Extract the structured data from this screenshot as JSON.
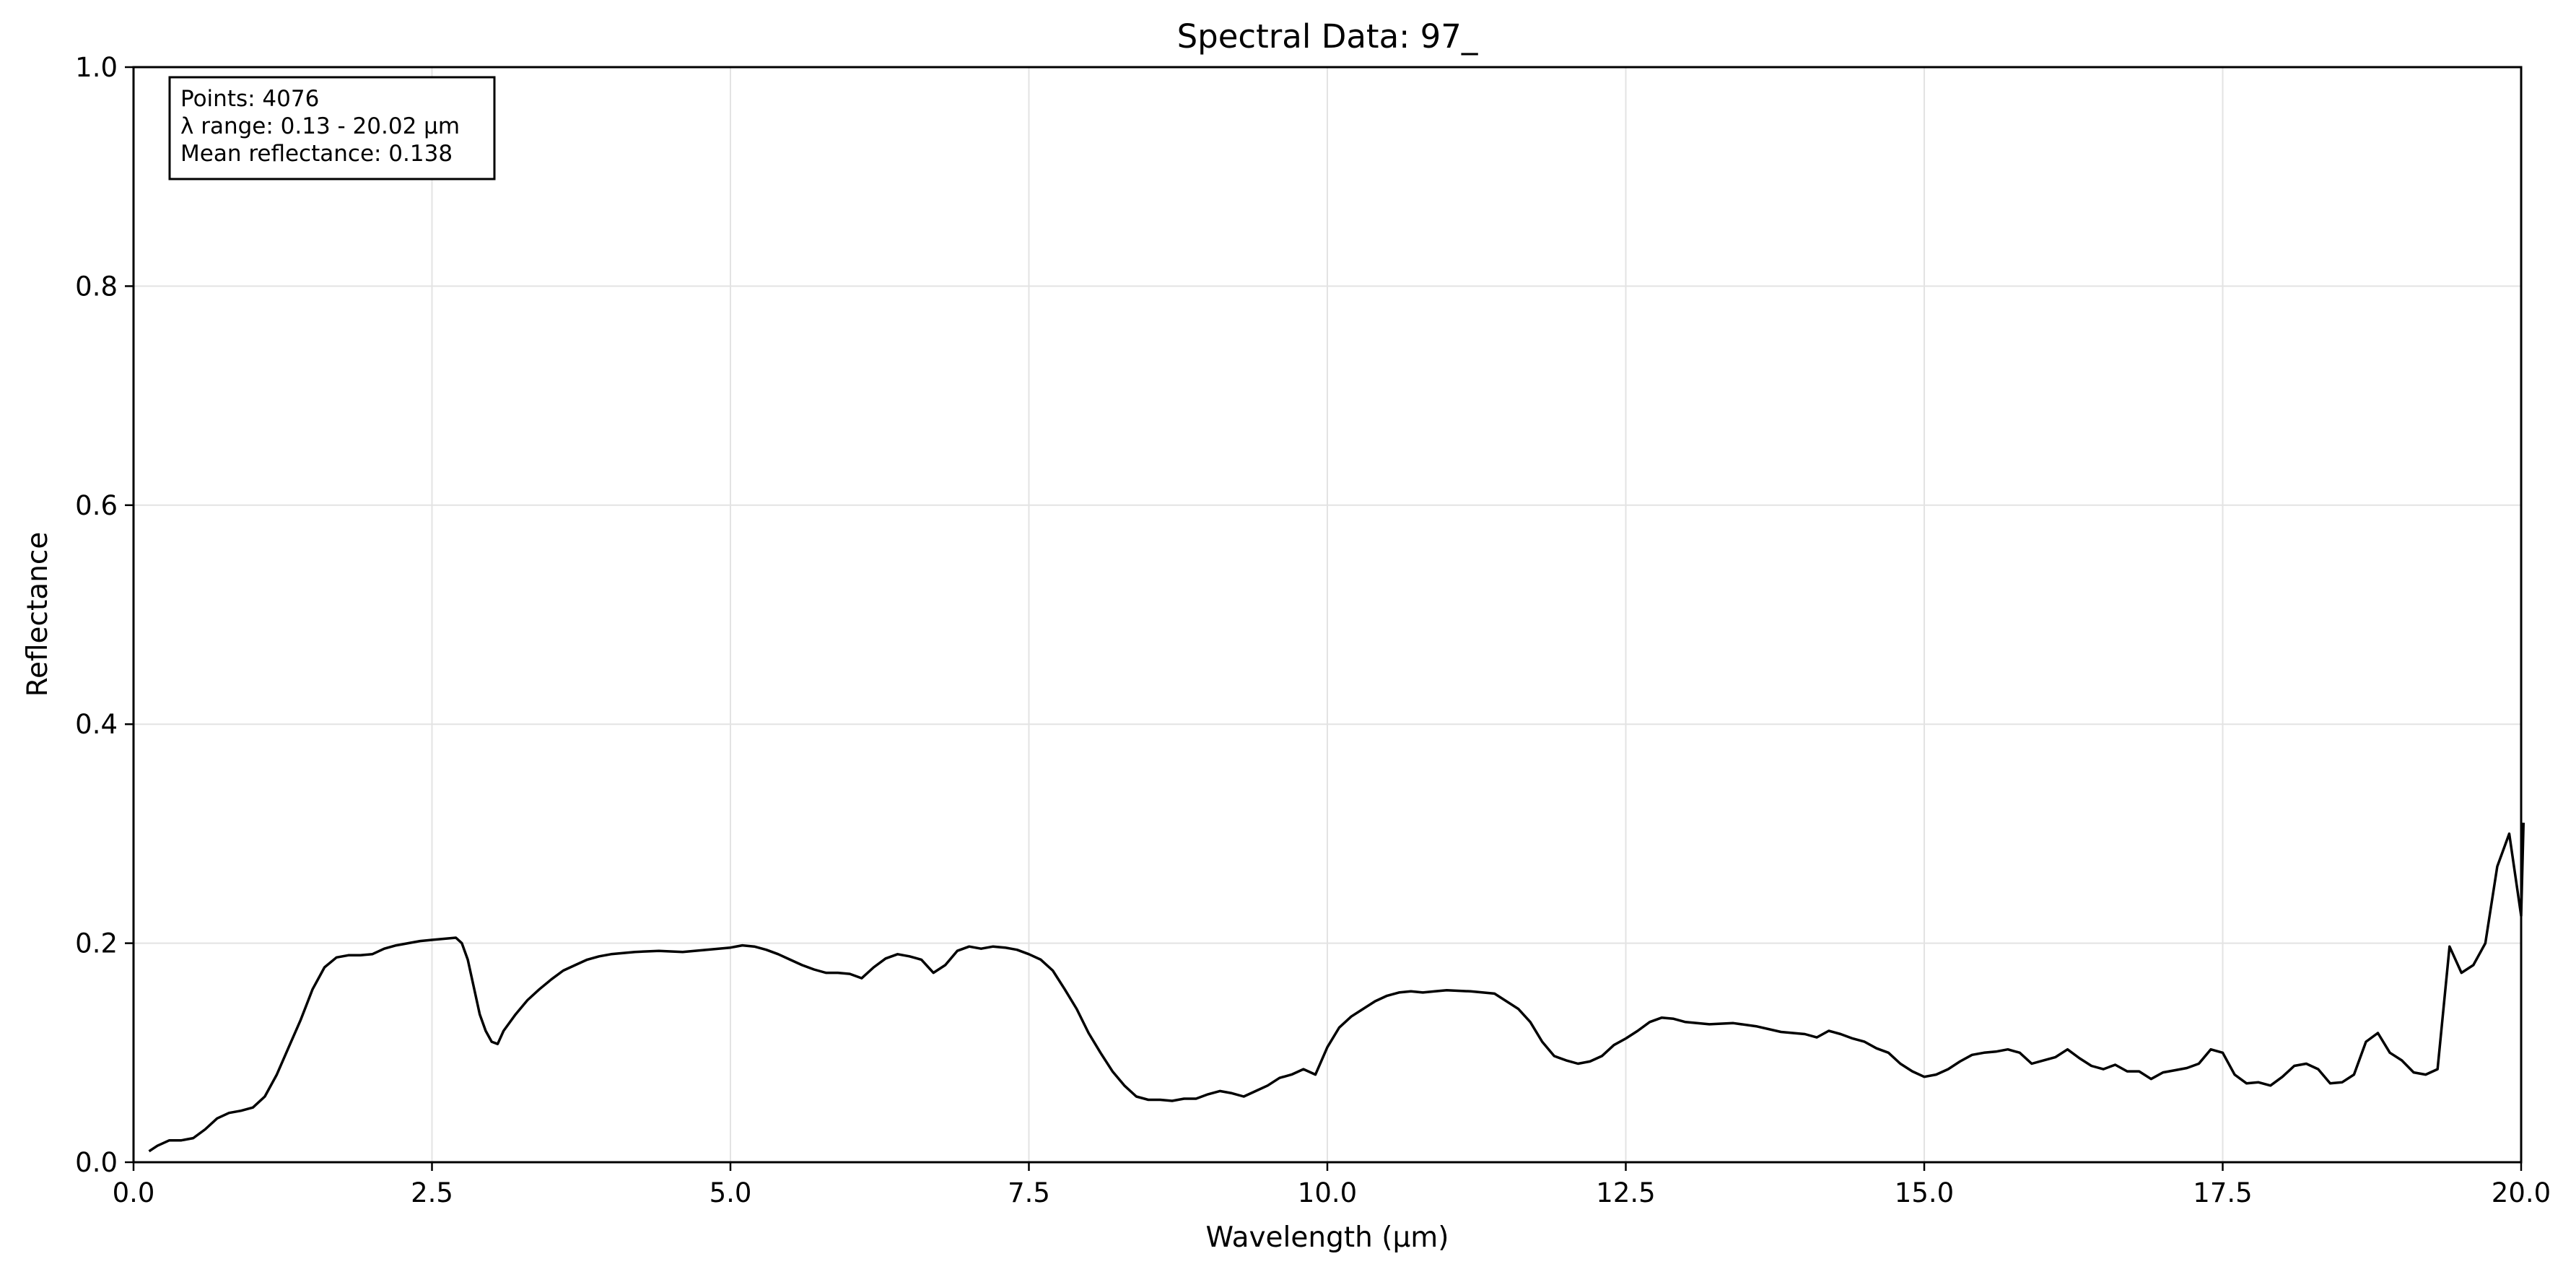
{
  "chart_data": {
    "type": "line",
    "title": "Spectral Data: 97_",
    "xlabel": "Wavelength (µm)",
    "ylabel": "Reflectance",
    "xlim": [
      0.0,
      20.0
    ],
    "ylim": [
      0.0,
      1.0
    ],
    "x_ticks": [
      "0.0",
      "2.5",
      "5.0",
      "7.5",
      "10.0",
      "12.5",
      "15.0",
      "17.5",
      "20.0"
    ],
    "y_ticks": [
      "0.0",
      "0.2",
      "0.4",
      "0.6",
      "0.8",
      "1.0"
    ],
    "grid": true,
    "line_color": "#000000",
    "info_box": {
      "position": "top-left",
      "lines": [
        "Points: 4076",
        "λ range: 0.13 - 20.02 µm",
        "Mean reflectance: 0.138"
      ]
    },
    "series": [
      {
        "x": [
          0.13,
          0.2,
          0.3,
          0.4,
          0.5,
          0.6,
          0.7,
          0.8,
          0.9,
          1.0,
          1.1,
          1.2,
          1.3,
          1.4,
          1.5,
          1.6,
          1.7,
          1.8,
          1.9,
          2.0,
          2.1,
          2.2,
          2.3,
          2.4,
          2.5,
          2.6,
          2.7,
          2.75,
          2.8,
          2.85,
          2.9,
          2.95,
          3.0,
          3.05,
          3.1,
          3.2,
          3.3,
          3.4,
          3.5,
          3.6,
          3.7,
          3.8,
          3.9,
          4.0,
          4.2,
          4.4,
          4.6,
          4.8,
          5.0,
          5.1,
          5.2,
          5.3,
          5.4,
          5.5,
          5.6,
          5.7,
          5.8,
          5.9,
          6.0,
          6.1,
          6.2,
          6.3,
          6.4,
          6.5,
          6.6,
          6.7,
          6.8,
          6.9,
          7.0,
          7.1,
          7.2,
          7.3,
          7.4,
          7.5,
          7.6,
          7.7,
          7.8,
          7.9,
          8.0,
          8.1,
          8.2,
          8.3,
          8.4,
          8.5,
          8.6,
          8.7,
          8.8,
          8.9,
          9.0,
          9.1,
          9.2,
          9.3,
          9.4,
          9.5,
          9.6,
          9.7,
          9.8,
          9.9,
          10.0,
          10.1,
          10.2,
          10.3,
          10.4,
          10.5,
          10.6,
          10.7,
          10.8,
          10.9,
          11.0,
          11.2,
          11.4,
          11.6,
          11.7,
          11.8,
          11.9,
          12.0,
          12.1,
          12.2,
          12.3,
          12.4,
          12.5,
          12.6,
          12.7,
          12.8,
          12.9,
          13.0,
          13.2,
          13.4,
          13.6,
          13.8,
          14.0,
          14.1,
          14.2,
          14.3,
          14.4,
          14.5,
          14.6,
          14.7,
          14.8,
          14.9,
          15.0,
          15.1,
          15.2,
          15.3,
          15.4,
          15.5,
          15.6,
          15.7,
          15.8,
          15.9,
          16.0,
          16.1,
          16.2,
          16.3,
          16.4,
          16.5,
          16.6,
          16.7,
          16.8,
          16.9,
          17.0,
          17.1,
          17.2,
          17.3,
          17.4,
          17.5,
          17.6,
          17.7,
          17.8,
          17.9,
          18.0,
          18.1,
          18.2,
          18.3,
          18.4,
          18.5,
          18.6,
          18.7,
          18.8,
          18.9,
          19.0,
          19.1,
          19.2,
          19.3,
          19.4,
          19.5,
          19.6,
          19.7,
          19.8,
          19.9,
          20.0,
          20.02
        ],
        "values": [
          0.01,
          0.015,
          0.02,
          0.02,
          0.022,
          0.03,
          0.04,
          0.045,
          0.047,
          0.05,
          0.06,
          0.08,
          0.105,
          0.13,
          0.158,
          0.178,
          0.187,
          0.189,
          0.189,
          0.19,
          0.195,
          0.198,
          0.2,
          0.202,
          0.203,
          0.204,
          0.205,
          0.2,
          0.185,
          0.16,
          0.135,
          0.12,
          0.11,
          0.108,
          0.12,
          0.135,
          0.148,
          0.158,
          0.167,
          0.175,
          0.18,
          0.185,
          0.188,
          0.19,
          0.192,
          0.193,
          0.192,
          0.194,
          0.196,
          0.198,
          0.197,
          0.194,
          0.19,
          0.185,
          0.18,
          0.176,
          0.173,
          0.173,
          0.172,
          0.168,
          0.178,
          0.186,
          0.19,
          0.188,
          0.185,
          0.173,
          0.18,
          0.193,
          0.197,
          0.195,
          0.197,
          0.196,
          0.194,
          0.19,
          0.185,
          0.175,
          0.158,
          0.14,
          0.118,
          0.1,
          0.083,
          0.07,
          0.06,
          0.057,
          0.057,
          0.056,
          0.058,
          0.058,
          0.062,
          0.065,
          0.063,
          0.06,
          0.065,
          0.07,
          0.077,
          0.08,
          0.085,
          0.08,
          0.105,
          0.123,
          0.133,
          0.14,
          0.147,
          0.152,
          0.155,
          0.156,
          0.155,
          0.156,
          0.157,
          0.156,
          0.154,
          0.14,
          0.128,
          0.11,
          0.097,
          0.093,
          0.09,
          0.092,
          0.097,
          0.107,
          0.113,
          0.12,
          0.128,
          0.132,
          0.131,
          0.128,
          0.126,
          0.127,
          0.124,
          0.119,
          0.117,
          0.114,
          0.12,
          0.117,
          0.113,
          0.11,
          0.104,
          0.1,
          0.09,
          0.083,
          0.078,
          0.08,
          0.085,
          0.092,
          0.098,
          0.1,
          0.101,
          0.103,
          0.1,
          0.09,
          0.093,
          0.096,
          0.103,
          0.095,
          0.088,
          0.085,
          0.089,
          0.083,
          0.083,
          0.076,
          0.082,
          0.084,
          0.086,
          0.09,
          0.103,
          0.1,
          0.08,
          0.072,
          0.073,
          0.07,
          0.078,
          0.088,
          0.09,
          0.085,
          0.072,
          0.073,
          0.08,
          0.11,
          0.118,
          0.1,
          0.093,
          0.082,
          0.08,
          0.085,
          0.197,
          0.173,
          0.18,
          0.2,
          0.27,
          0.3,
          0.225,
          0.31
        ]
      }
    ]
  }
}
